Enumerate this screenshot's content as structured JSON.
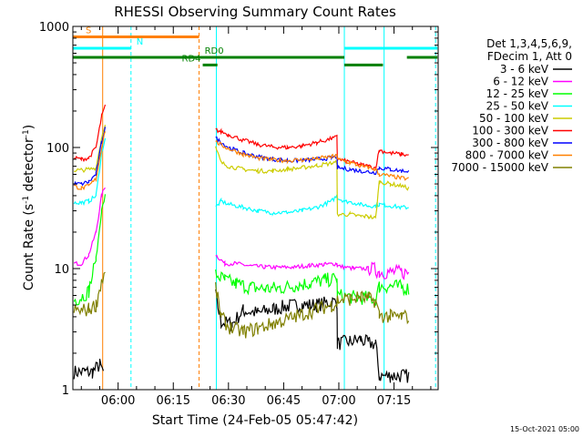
{
  "chart_data": {
    "type": "line",
    "title": "RHESSI Observing Summary Count Rates",
    "xlabel": "Start Time (24-Feb-05 05:47:42)",
    "ylabel_pre": "Count Rate (s",
    "ylabel_sup": "-1",
    "ylabel_post": " detector",
    "ylabel_sup2": "-1",
    "ylabel_end": ")",
    "y_scale": "log",
    "ylim": [
      1,
      1000
    ],
    "xlim_minutes": [
      347.7,
      447.0
    ],
    "x_ticks": [
      {
        "minutes": 360,
        "label": "06:00"
      },
      {
        "minutes": 375,
        "label": "06:15"
      },
      {
        "minutes": 390,
        "label": "06:30"
      },
      {
        "minutes": 405,
        "label": "06:45"
      },
      {
        "minutes": 420,
        "label": "07:00"
      },
      {
        "minutes": 435,
        "label": "07:15"
      }
    ],
    "y_ticks": [
      {
        "value": 1,
        "label": "1"
      },
      {
        "value": 10,
        "label": "10"
      },
      {
        "value": 100,
        "label": "100"
      },
      {
        "value": 1000,
        "label": "1000"
      }
    ],
    "legend_header": [
      "Det 1,3,4,5,6,9,",
      "FDecim 1, Att 0"
    ],
    "legend_position": "right",
    "series": [
      {
        "name": "3 - 6 keV",
        "color": "#000000",
        "points": [
          [
            348,
            1.4
          ],
          [
            351,
            1.4
          ],
          [
            353,
            1.4
          ],
          [
            355,
            1.6
          ],
          [
            356,
            1.4
          ],
          [
            357,
            "gap"
          ],
          [
            386.5,
            6
          ],
          [
            388,
            3.6
          ],
          [
            391,
            3.5
          ],
          [
            394,
            4.5
          ],
          [
            398,
            4.3
          ],
          [
            402,
            4.6
          ],
          [
            406,
            4.9
          ],
          [
            410,
            5.0
          ],
          [
            414,
            5.0
          ],
          [
            418,
            5.3
          ],
          [
            419.5,
            5.3
          ],
          [
            419.6,
            2.4
          ],
          [
            423,
            2.5
          ],
          [
            426,
            2.6
          ],
          [
            428,
            2.4
          ],
          [
            430,
            2.4
          ],
          [
            431,
            1.3
          ],
          [
            434,
            1.3
          ],
          [
            437,
            1.3
          ],
          [
            439,
            1.3
          ]
        ]
      },
      {
        "name": "6 - 12 keV",
        "color": "#ff00ff",
        "points": [
          [
            348,
            11
          ],
          [
            350,
            11
          ],
          [
            352,
            13
          ],
          [
            354,
            20
          ],
          [
            355.5,
            40
          ],
          [
            356.5,
            48
          ],
          [
            357,
            "gap"
          ],
          [
            386.5,
            13
          ],
          [
            389,
            11
          ],
          [
            392,
            11
          ],
          [
            396,
            10.5
          ],
          [
            400,
            10.3
          ],
          [
            404,
            10.2
          ],
          [
            408,
            10.3
          ],
          [
            412,
            10.6
          ],
          [
            416,
            10.8
          ],
          [
            419.5,
            11
          ],
          [
            419.6,
            10.5
          ],
          [
            424,
            10
          ],
          [
            428,
            10
          ],
          [
            430,
            9.8
          ],
          [
            431,
            9.3
          ],
          [
            434,
            9.4
          ],
          [
            437,
            9.3
          ],
          [
            439,
            9.2
          ]
        ]
      },
      {
        "name": "12 - 25 keV",
        "color": "#00ff00",
        "points": [
          [
            348,
            5.5
          ],
          [
            350,
            5.8
          ],
          [
            352,
            6.5
          ],
          [
            354,
            12
          ],
          [
            355.5,
            30
          ],
          [
            356.5,
            40
          ],
          [
            357,
            "gap"
          ],
          [
            386.5,
            9
          ],
          [
            389,
            8
          ],
          [
            392,
            7.5
          ],
          [
            396,
            7
          ],
          [
            400,
            6.8
          ],
          [
            404,
            6.9
          ],
          [
            408,
            7.2
          ],
          [
            412,
            7.6
          ],
          [
            416,
            8
          ],
          [
            419.5,
            8.2
          ],
          [
            419.6,
            6
          ],
          [
            424,
            5.8
          ],
          [
            428,
            5.7
          ],
          [
            430,
            5.6
          ],
          [
            431,
            7.1
          ],
          [
            434,
            7.2
          ],
          [
            437,
            7.0
          ],
          [
            439,
            6.8
          ]
        ]
      },
      {
        "name": "25 - 50 keV",
        "color": "#00ffff",
        "points": [
          [
            348,
            35
          ],
          [
            350,
            35
          ],
          [
            352,
            36
          ],
          [
            354,
            40
          ],
          [
            355.5,
            90
          ],
          [
            356.5,
            120
          ],
          [
            357,
            "gap"
          ],
          [
            386.5,
            32
          ],
          [
            388,
            36
          ],
          [
            390,
            34
          ],
          [
            394,
            32
          ],
          [
            398,
            30
          ],
          [
            402,
            29
          ],
          [
            406,
            29
          ],
          [
            410,
            30
          ],
          [
            414,
            32
          ],
          [
            418,
            36
          ],
          [
            419.5,
            40
          ],
          [
            419.6,
            38
          ],
          [
            422,
            36
          ],
          [
            426,
            34
          ],
          [
            428,
            33
          ],
          [
            430,
            33
          ],
          [
            431,
            34
          ],
          [
            434,
            33
          ],
          [
            437,
            32
          ],
          [
            439,
            32
          ]
        ]
      },
      {
        "name": "50 - 100 keV",
        "color": "#cccc00",
        "points": [
          [
            348,
            65
          ],
          [
            350,
            65
          ],
          [
            352,
            66
          ],
          [
            354,
            68
          ],
          [
            355.5,
            120
          ],
          [
            356.5,
            160
          ],
          [
            357,
            "gap"
          ],
          [
            386.5,
            100
          ],
          [
            388,
            75
          ],
          [
            390,
            70
          ],
          [
            394,
            66
          ],
          [
            398,
            64
          ],
          [
            402,
            64
          ],
          [
            406,
            66
          ],
          [
            410,
            68
          ],
          [
            414,
            71
          ],
          [
            418,
            74
          ],
          [
            419.5,
            75
          ],
          [
            419.6,
            28
          ],
          [
            423,
            28
          ],
          [
            426,
            27
          ],
          [
            428,
            27
          ],
          [
            430,
            26
          ],
          [
            431,
            52
          ],
          [
            434,
            50
          ],
          [
            437,
            48
          ],
          [
            439,
            46
          ]
        ]
      },
      {
        "name": "100 - 300 keV",
        "color": "#ff0000",
        "points": [
          [
            348,
            82
          ],
          [
            350,
            80
          ],
          [
            352,
            82
          ],
          [
            354,
            100
          ],
          [
            355.5,
            180
          ],
          [
            356.5,
            220
          ],
          [
            357,
            "gap"
          ],
          [
            386.5,
            140
          ],
          [
            388,
            135
          ],
          [
            390,
            128
          ],
          [
            394,
            115
          ],
          [
            398,
            106
          ],
          [
            402,
            101
          ],
          [
            406,
            100
          ],
          [
            410,
            103
          ],
          [
            414,
            110
          ],
          [
            418,
            118
          ],
          [
            419.5,
            122
          ],
          [
            419.6,
            80
          ],
          [
            423,
            76
          ],
          [
            426,
            72
          ],
          [
            428,
            70
          ],
          [
            430,
            68
          ],
          [
            431,
            95
          ],
          [
            434,
            90
          ],
          [
            437,
            88
          ],
          [
            439,
            86
          ]
        ]
      },
      {
        "name": "300 - 800 keV",
        "color": "#0000ff",
        "points": [
          [
            348,
            50
          ],
          [
            350,
            50
          ],
          [
            352,
            52
          ],
          [
            354,
            60
          ],
          [
            355.5,
            110
          ],
          [
            356.5,
            150
          ],
          [
            357,
            "gap"
          ],
          [
            386.5,
            120
          ],
          [
            388,
            110
          ],
          [
            390,
            100
          ],
          [
            394,
            90
          ],
          [
            398,
            84
          ],
          [
            402,
            80
          ],
          [
            406,
            78
          ],
          [
            410,
            78
          ],
          [
            414,
            80
          ],
          [
            418,
            82
          ],
          [
            419.5,
            84
          ],
          [
            419.6,
            68
          ],
          [
            423,
            66
          ],
          [
            426,
            64
          ],
          [
            428,
            63
          ],
          [
            430,
            62
          ],
          [
            431,
            68
          ],
          [
            434,
            66
          ],
          [
            437,
            64
          ],
          [
            439,
            64
          ]
        ]
      },
      {
        "name": "800 - 7000 keV",
        "color": "#ff8000",
        "points": [
          [
            348,
            48
          ],
          [
            350,
            46
          ],
          [
            352,
            48
          ],
          [
            354,
            55
          ],
          [
            355.5,
            100
          ],
          [
            356.5,
            140
          ],
          [
            357,
            "gap"
          ],
          [
            386.5,
            112
          ],
          [
            388,
            105
          ],
          [
            390,
            98
          ],
          [
            394,
            88
          ],
          [
            398,
            82
          ],
          [
            402,
            79
          ],
          [
            406,
            78
          ],
          [
            410,
            79
          ],
          [
            414,
            81
          ],
          [
            418,
            84
          ],
          [
            419.5,
            85
          ],
          [
            419.6,
            80
          ],
          [
            423,
            75
          ],
          [
            426,
            70
          ],
          [
            428,
            68
          ],
          [
            430,
            66
          ],
          [
            431,
            60
          ],
          [
            434,
            58
          ],
          [
            437,
            56
          ],
          [
            439,
            55
          ]
        ]
      },
      {
        "name": "7000 - 15000 keV",
        "color": "#808000",
        "points": [
          [
            348,
            4.5
          ],
          [
            350,
            4.5
          ],
          [
            352,
            4.6
          ],
          [
            354,
            5
          ],
          [
            355.5,
            8
          ],
          [
            356.5,
            9
          ],
          [
            357,
            "gap"
          ],
          [
            386.5,
            7
          ],
          [
            388,
            4
          ],
          [
            390,
            3.3
          ],
          [
            394,
            3.0
          ],
          [
            398,
            3.2
          ],
          [
            402,
            3.5
          ],
          [
            406,
            3.8
          ],
          [
            410,
            4.2
          ],
          [
            414,
            4.6
          ],
          [
            418,
            5.0
          ],
          [
            419.5,
            5.2
          ],
          [
            419.6,
            5.5
          ],
          [
            423,
            5.6
          ],
          [
            426,
            5.8
          ],
          [
            428,
            5.6
          ],
          [
            430,
            5.4
          ],
          [
            431,
            4.1
          ],
          [
            434,
            4.0
          ],
          [
            437,
            4.0
          ],
          [
            439,
            4.0
          ]
        ]
      }
    ],
    "flag_bars": [
      {
        "name": "S",
        "color": "#ff8000",
        "value": 820,
        "start": 347.7,
        "end": 382,
        "label_side": "start"
      },
      {
        "name": "N",
        "color": "#00ffff",
        "value": 660,
        "start": 347.7,
        "end": 363.5,
        "label_side": "end"
      },
      {
        "name": "N2",
        "color": "#00ffff",
        "value": 660,
        "start": 421.5,
        "end": 446.8,
        "label_side": "none"
      },
      {
        "name": "RD0",
        "color": "#008000",
        "value": 555,
        "start": 347.7,
        "end": 421.5,
        "label_side": "mid",
        "label_at": 383.5
      },
      {
        "name": "RD0b",
        "color": "#008000",
        "value": 555,
        "start": 438.5,
        "end": 446.8,
        "label_side": "none"
      },
      {
        "name": "RD4",
        "color": "#008000",
        "value": 480,
        "start": 383,
        "end": 387,
        "label_side": "start"
      },
      {
        "name": "RD4b",
        "color": "#008000",
        "value": 480,
        "start": 421.5,
        "end": 432,
        "label_side": "none"
      }
    ],
    "vertical_markers": [
      {
        "minutes": 355.8,
        "color": "#ff8000",
        "style": "solid"
      },
      {
        "minutes": 363.5,
        "color": "#00ffff",
        "style": "dashed"
      },
      {
        "minutes": 382.0,
        "color": "#ff8000",
        "style": "dashed"
      },
      {
        "minutes": 386.7,
        "color": "#00ffff",
        "style": "solid"
      },
      {
        "minutes": 421.5,
        "color": "#00ffff",
        "style": "solid"
      },
      {
        "minutes": 432.3,
        "color": "#00ffff",
        "style": "solid"
      },
      {
        "minutes": 446.3,
        "color": "#00ffff",
        "style": "dashed"
      }
    ],
    "grid": false
  },
  "footer": {
    "timestamp": "15-Oct-2021 05:00"
  }
}
